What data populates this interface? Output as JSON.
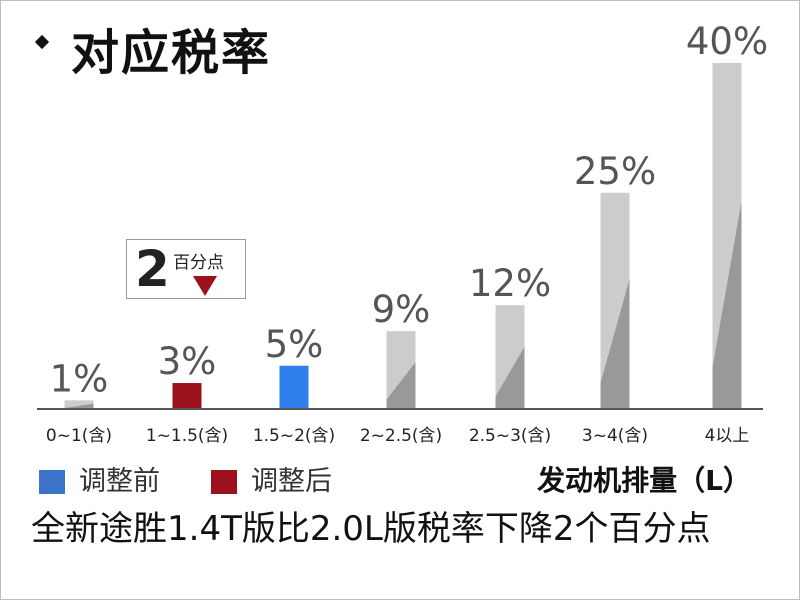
{
  "title": "对应税率",
  "callout": {
    "number": "2",
    "unit": "百分点"
  },
  "legend": {
    "before": {
      "label": "调整前",
      "color": "#3a73c9"
    },
    "after": {
      "label": "调整后",
      "color": "#9b111e"
    }
  },
  "caption": "全新途胜1.4T版比2.0L版税率下降2个百分点",
  "chart_data": {
    "type": "bar",
    "xlabel": "发动机排量（L）",
    "categories": [
      "0~1(含)",
      "1~1.5(含)",
      "1.5~2(含)",
      "2~2.5(含)",
      "2.5~3(含)",
      "3~4(含)",
      "4以上"
    ],
    "value_labels": [
      "1%",
      "3%",
      "5%",
      "9%",
      "12%",
      "25%",
      "40%"
    ],
    "series": [
      {
        "name": "调整前",
        "values": [
          1,
          null,
          5,
          9,
          12,
          25,
          40
        ],
        "unit": "%"
      },
      {
        "name": "调整后",
        "values": [
          null,
          3,
          null,
          null,
          null,
          null,
          null
        ],
        "unit": "%"
      }
    ],
    "bar_colors": {
      "default_light": "#cccccc",
      "default_dark": "#999999",
      "after": "#9b111e",
      "highlight": "#2f80ed"
    },
    "highlight_category": "1.5~2(含)",
    "ylim": [
      0,
      40
    ],
    "grid": false
  }
}
